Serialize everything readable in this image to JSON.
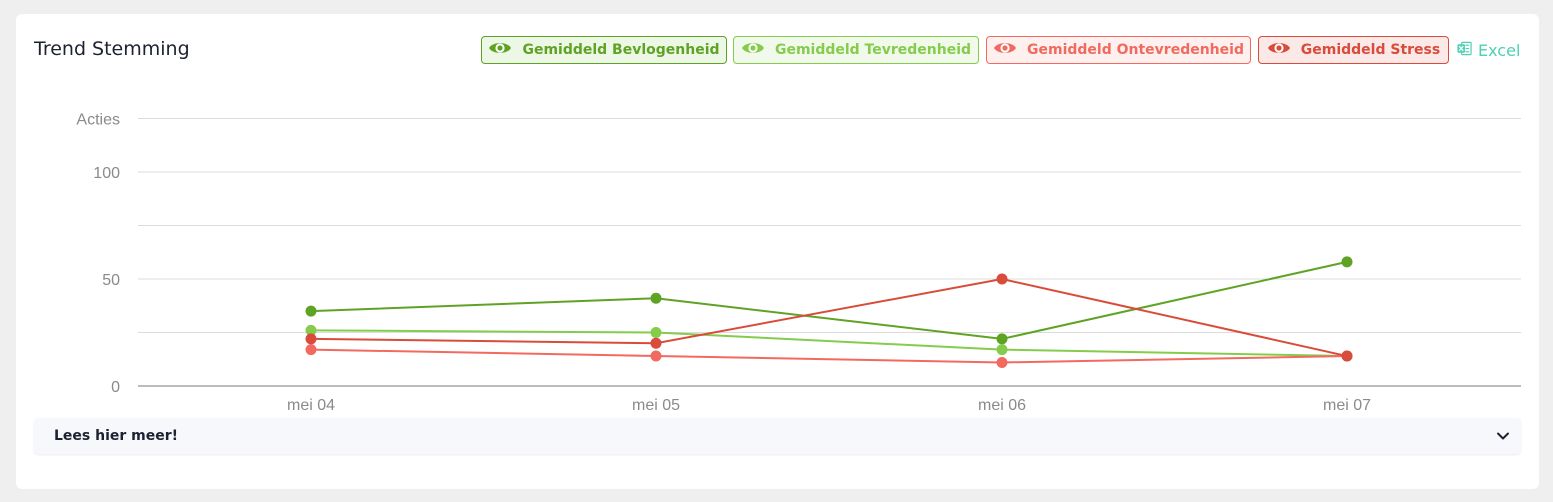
{
  "card": {
    "title": "Trend Stemming",
    "excel_label": "Excel",
    "read_more_label": "Lees hier meer!"
  },
  "legend": [
    {
      "label": "Gemiddeld Bevlogenheid",
      "icon": "eye-icon",
      "color": "#5fa324",
      "bg": "#edf7e5"
    },
    {
      "label": "Gemiddeld Tevredenheid",
      "icon": "eye-icon",
      "color": "#86cc4c",
      "bg": "#f1f9eb"
    },
    {
      "label": "Gemiddeld Ontevredenheid",
      "icon": "eye-icon",
      "color": "#f26a5f",
      "bg": "#fdf0ef"
    },
    {
      "label": "Gemiddeld Stress",
      "icon": "eye-icon",
      "color": "#d94b3a",
      "bg": "#fbe9e7"
    }
  ],
  "chart_data": {
    "type": "line",
    "ylabel": "Acties",
    "categories": [
      "mei 04",
      "mei 05",
      "mei 06",
      "mei 07"
    ],
    "yticks": [
      0,
      50,
      100
    ],
    "ylim": [
      0,
      125
    ],
    "grid": true,
    "series": [
      {
        "name": "Gemiddeld Bevlogenheid",
        "color": "#5fa324",
        "values": [
          35,
          41,
          22,
          58
        ]
      },
      {
        "name": "Gemiddeld Tevredenheid",
        "color": "#86cc4c",
        "values": [
          26,
          25,
          17,
          14
        ]
      },
      {
        "name": "Gemiddeld Ontevredenheid",
        "color": "#f26a5f",
        "values": [
          17,
          14,
          11,
          14
        ]
      },
      {
        "name": "Gemiddeld Stress",
        "color": "#d94b3a",
        "values": [
          22,
          20,
          50,
          14
        ]
      }
    ]
  }
}
